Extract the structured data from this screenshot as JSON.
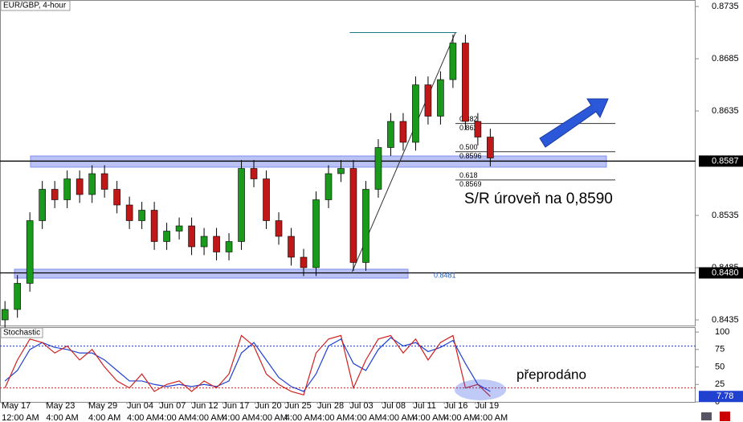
{
  "chart_data": {
    "type": "candlestick",
    "title": "EUR/GBP, 4-hour",
    "open": [
      0.8435,
      0.8445,
      0.847,
      0.853,
      0.856,
      0.855,
      0.857,
      0.8555,
      0.8575,
      0.856,
      0.8545,
      0.853,
      0.854,
      0.851,
      0.852,
      0.8525,
      0.8505,
      0.8515,
      0.85,
      0.851,
      0.858,
      0.857,
      0.853,
      0.8515,
      0.8495,
      0.8485,
      0.855,
      0.8575,
      0.858,
      0.849,
      0.856,
      0.86,
      0.8625,
      0.8605,
      0.866,
      0.863,
      0.8665,
      0.87,
      0.8625,
      0.861
    ],
    "high": [
      0.8453,
      0.8478,
      0.8538,
      0.8568,
      0.8568,
      0.8578,
      0.8578,
      0.8583,
      0.8583,
      0.8568,
      0.8553,
      0.8548,
      0.8548,
      0.8528,
      0.8533,
      0.8533,
      0.8523,
      0.8523,
      0.8518,
      0.8588,
      0.8588,
      0.8578,
      0.8538,
      0.8523,
      0.8503,
      0.8558,
      0.8583,
      0.8588,
      0.8588,
      0.8568,
      0.8608,
      0.8633,
      0.8633,
      0.8668,
      0.8668,
      0.8673,
      0.8708,
      0.8708,
      0.8633,
      0.8618
    ],
    "low": [
      0.8427,
      0.8437,
      0.8462,
      0.8522,
      0.8542,
      0.8542,
      0.8547,
      0.8547,
      0.8552,
      0.8537,
      0.8522,
      0.8522,
      0.8502,
      0.8502,
      0.8512,
      0.8497,
      0.8497,
      0.8492,
      0.8492,
      0.8502,
      0.8562,
      0.8522,
      0.8507,
      0.8487,
      0.8477,
      0.8477,
      0.8542,
      0.8567,
      0.8482,
      0.8482,
      0.8552,
      0.8592,
      0.8597,
      0.8597,
      0.8622,
      0.8622,
      0.8657,
      0.8617,
      0.8602,
      0.8582
    ],
    "close": [
      0.8445,
      0.847,
      0.853,
      0.856,
      0.855,
      0.857,
      0.8555,
      0.8575,
      0.856,
      0.8545,
      0.853,
      0.854,
      0.851,
      0.852,
      0.8525,
      0.8505,
      0.8515,
      0.85,
      0.851,
      0.858,
      0.857,
      0.853,
      0.8515,
      0.8495,
      0.8485,
      0.855,
      0.8575,
      0.858,
      0.849,
      0.856,
      0.86,
      0.8625,
      0.8605,
      0.866,
      0.863,
      0.8665,
      0.87,
      0.8625,
      0.861,
      0.859
    ],
    "up_color": "#1a9a1a",
    "down_color": "#c01818",
    "xlim": [
      -0.4,
      55.5
    ],
    "xticks": [
      {
        "value": -0.26,
        "label": "May 17"
      },
      {
        "value": 3.3,
        "label": "May 23"
      },
      {
        "value": 6.7,
        "label": "May 29"
      },
      {
        "value": 9.8,
        "label": "Jun 04"
      },
      {
        "value": 12.4,
        "label": "Jun 07"
      },
      {
        "value": 15,
        "label": "Jun 12"
      },
      {
        "value": 17.5,
        "label": "Jun 17"
      },
      {
        "value": 20.1,
        "label": "Jun 20"
      },
      {
        "value": 22.5,
        "label": "Jun 25"
      },
      {
        "value": 25.1,
        "label": "Jun 28"
      },
      {
        "value": 27.7,
        "label": "Jul 03"
      },
      {
        "value": 30.3,
        "label": "Jul 08"
      },
      {
        "value": 32.8,
        "label": "Jul 11"
      },
      {
        "value": 35.3,
        "label": "Jul 16"
      },
      {
        "value": 37.8,
        "label": "Jul 19"
      }
    ],
    "xtick_times": [
      "12:00 AM",
      "4:00 AM",
      "4:00 AM",
      "4:00 AM",
      "4:00 AM",
      "4:00 AM",
      "4:00 AM",
      "4:00 AM",
      "4:00 AM",
      "4:00 AM",
      "4:00 AM",
      "4:00 AM",
      "4:00 AM",
      "4:00 AM",
      "4:00 AM"
    ],
    "ylim": [
      0.84296,
      0.87412
    ],
    "yticks": [
      0.8735,
      0.8685,
      0.8635,
      0.8535,
      0.8485,
      0.8435
    ],
    "price_lines": [
      0.8587,
      {
        "value": 0.848,
        "label": "0.8480"
      }
    ],
    "zones": [
      [
        0.85812,
        0.85919
      ],
      [
        0.8475,
        0.84835
      ]
    ],
    "fib": {
      "low": 0.8481,
      "high": 0.871,
      "levels": [
        {
          "ratio": 0.382,
          "price": 0.8623
        },
        {
          "ratio": {
            "value": 0.5,
            "label": "0.500"
          },
          "price": 0.8596
        },
        {
          "ratio": 0.618,
          "price": 0.8569
        }
      ]
    },
    "annotations": [
      "S/R úroveň na 0,8590",
      "přeprodáno"
    ],
    "stochastic": {
      "title": "Stochastic",
      "k": [
        20,
        60,
        90,
        85,
        70,
        80,
        60,
        75,
        50,
        30,
        20,
        40,
        15,
        25,
        30,
        15,
        30,
        20,
        40,
        95,
        80,
        40,
        25,
        15,
        10,
        70,
        90,
        95,
        20,
        60,
        90,
        95,
        70,
        90,
        60,
        85,
        95,
        20,
        25,
        8
      ],
      "d": [
        30,
        45,
        75,
        85,
        78,
        75,
        70,
        70,
        60,
        45,
        30,
        30,
        25,
        22,
        25,
        22,
        25,
        22,
        30,
        70,
        85,
        60,
        35,
        22,
        15,
        40,
        80,
        90,
        55,
        45,
        75,
        92,
        80,
        85,
        72,
        78,
        88,
        55,
        25,
        15
      ],
      "k_color": "#d02020",
      "d_color": "#2040d0",
      "ylim": [
        0,
        107
      ],
      "yticks": [
        100,
        75,
        50,
        25,
        0
      ],
      "levels": [
        80,
        20
      ],
      "last": 7.78
    }
  }
}
